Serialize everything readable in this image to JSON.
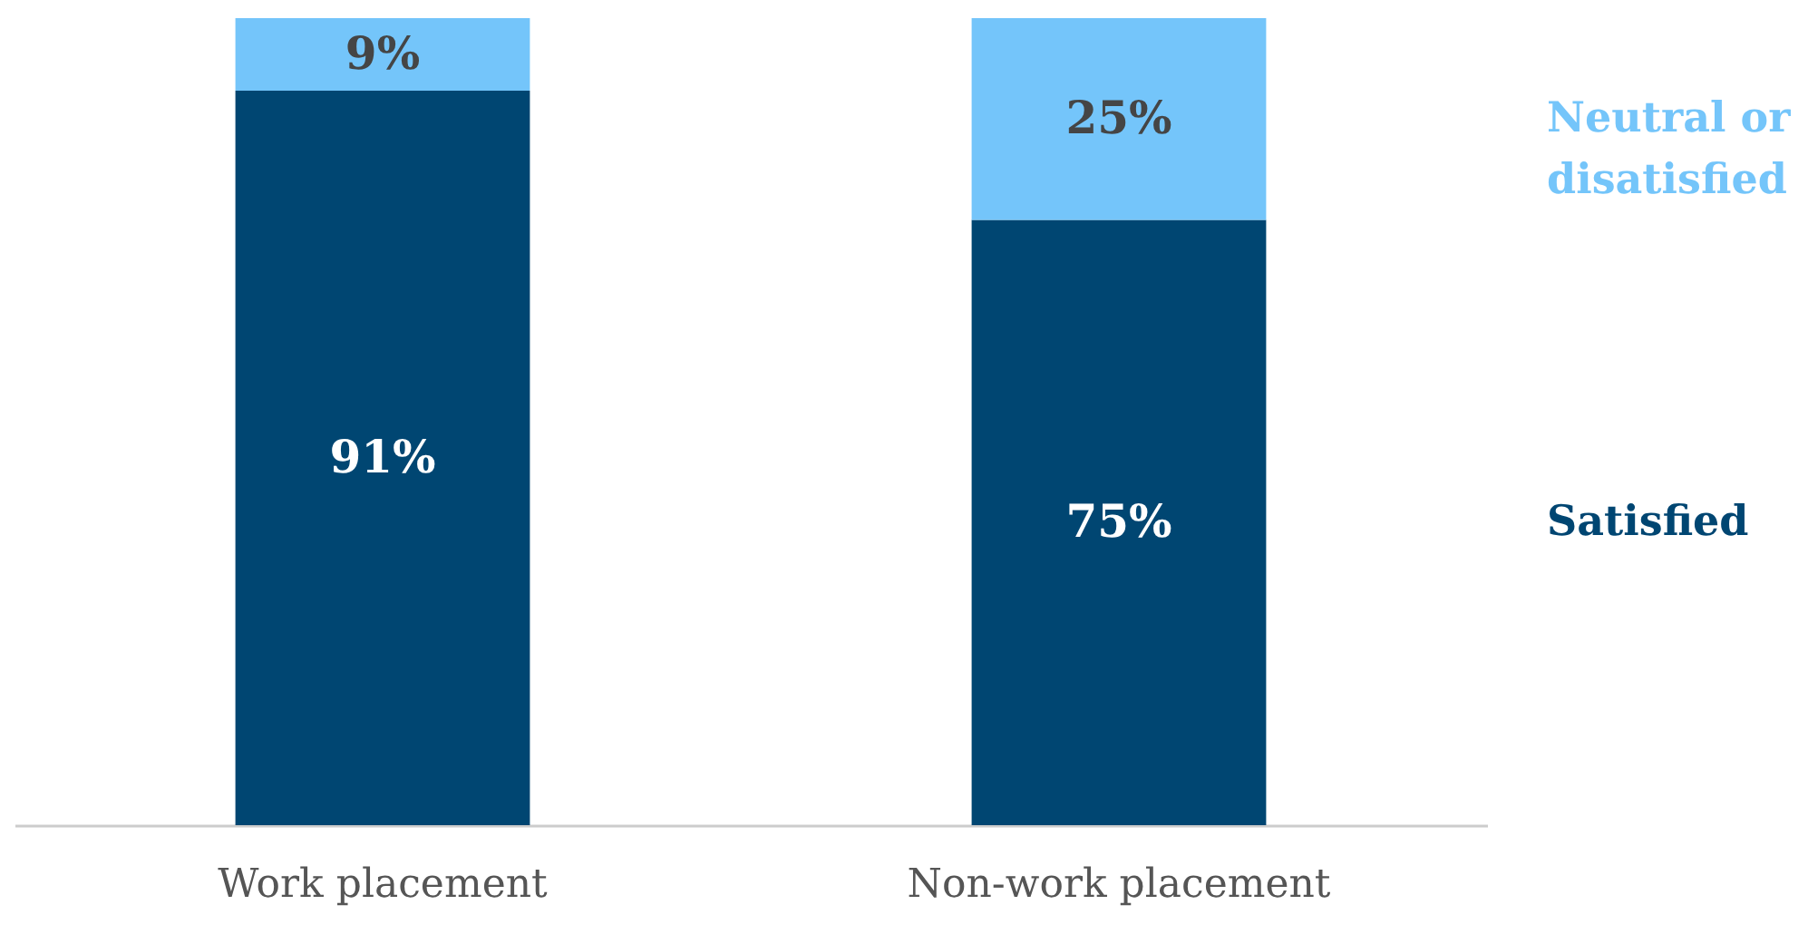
{
  "chart_data": {
    "type": "bar",
    "stacked": true,
    "categories": [
      "Work placement",
      "Non-work placement"
    ],
    "legend": "right",
    "series": [
      {
        "name": "Satisfied",
        "color": "#004672",
        "values": [
          91,
          75
        ],
        "value_labels": [
          "91%",
          "75%"
        ]
      },
      {
        "name": "Neutral or disatisfied",
        "color": "#74c5fa",
        "values": [
          9,
          25
        ],
        "value_labels": [
          "9%",
          "25%"
        ]
      }
    ]
  }
}
